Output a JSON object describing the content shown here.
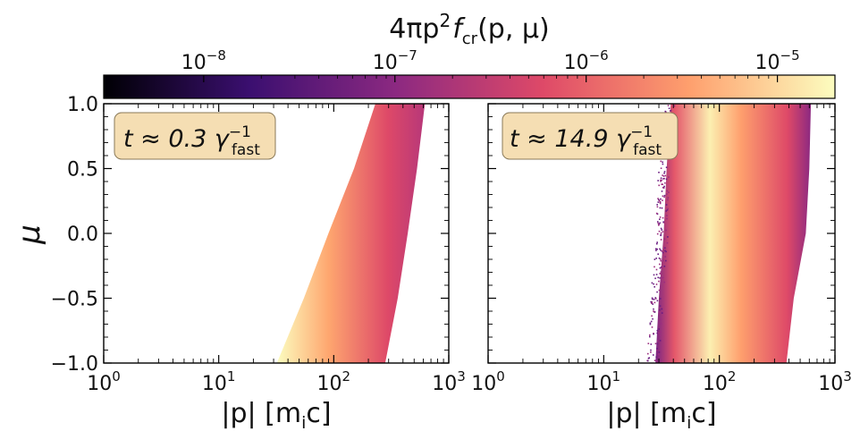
{
  "colorbar": {
    "label_parts": [
      "4πp",
      "2",
      "f",
      "cr",
      "(p, μ)"
    ],
    "scale": "log",
    "range": [
      3e-09,
      2e-05
    ],
    "ticks": [
      {
        "base": "10",
        "exp": "−8",
        "value": 1e-08
      },
      {
        "base": "10",
        "exp": "−7",
        "value": 1e-07
      },
      {
        "base": "10",
        "exp": "−6",
        "value": 1e-06
      },
      {
        "base": "10",
        "exp": "−5",
        "value": 1e-05
      }
    ],
    "colormap": [
      "#000004",
      "#3b0f70",
      "#8c2981",
      "#de4968",
      "#fe9f6d",
      "#fcfdbf"
    ]
  },
  "axes": {
    "ylabel": "μ",
    "xlabel_parts": [
      "|p| [m",
      "i",
      "c]"
    ],
    "xscale": "log",
    "xlim": [
      1,
      1000
    ],
    "ylim": [
      -1.0,
      1.0
    ],
    "xticks": [
      {
        "base": "10",
        "exp": "0",
        "value": 1
      },
      {
        "base": "10",
        "exp": "1",
        "value": 10
      },
      {
        "base": "10",
        "exp": "2",
        "value": 100
      },
      {
        "base": "10",
        "exp": "3",
        "value": 1000
      }
    ],
    "yticks": [
      "1.0",
      "0.5",
      "0.0",
      "−0.5",
      "−1.0"
    ]
  },
  "chart_data": [
    {
      "type": "heatmap",
      "panel": "left",
      "annotation_parts": [
        "t ≈ 0.3 γ",
        "−1",
        "fast"
      ],
      "xscale": "log",
      "xlim": [
        1,
        1000
      ],
      "ylim": [
        -1.0,
        1.0
      ],
      "filled_region": {
        "mu": [
          -1.0,
          -0.5,
          0.0,
          0.5,
          1.0
        ],
        "p_min": [
          32,
          55,
          90,
          150,
          230
        ],
        "p_max": [
          280,
          360,
          440,
          530,
          620
        ]
      },
      "peak_value": 1.5e-05
    },
    {
      "type": "heatmap",
      "panel": "right",
      "annotation_parts": [
        "t ≈ 14.9 γ",
        "−1",
        "fast"
      ],
      "xscale": "log",
      "xlim": [
        1,
        1000
      ],
      "ylim": [
        -1.0,
        1.0
      ],
      "filled_region": {
        "mu": [
          -1.0,
          -0.5,
          0.0,
          0.5,
          1.0
        ],
        "p_min": [
          28,
          30,
          33,
          35,
          38
        ],
        "p_max": [
          380,
          440,
          560,
          600,
          620
        ]
      },
      "peak_p": 80,
      "peak_value": 2e-05
    }
  ]
}
